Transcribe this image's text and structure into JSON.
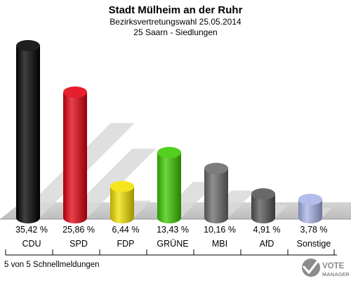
{
  "chart_data": {
    "type": "bar",
    "title": "Stadt Mülheim an der Ruhr",
    "subtitle_line1": "Bezirksvertretungswahl 25.05.2014",
    "subtitle_line2": "25 Saarn - Siedlungen",
    "categories": [
      "CDU",
      "SPD",
      "FDP",
      "GRÜNE",
      "MBI",
      "AfD",
      "Sonstige"
    ],
    "values": [
      35.42,
      25.86,
      6.44,
      13.43,
      10.16,
      4.91,
      3.78
    ],
    "value_labels": [
      "35,42 %",
      "25,86 %",
      "6,44 %",
      "13,43 %",
      "10,16 %",
      "4,91 %",
      "3,78 %"
    ],
    "colors": [
      "#000000",
      "#e3000f",
      "#f2e200",
      "#3cc800",
      "#6a6a6a",
      "#555555",
      "#a8b4e8"
    ],
    "ylim": [
      0,
      40
    ]
  },
  "footer": {
    "status": "5 von 5 Schnellmeldungen",
    "logo_line1": "VOTE",
    "logo_line2": "MANAGER"
  }
}
